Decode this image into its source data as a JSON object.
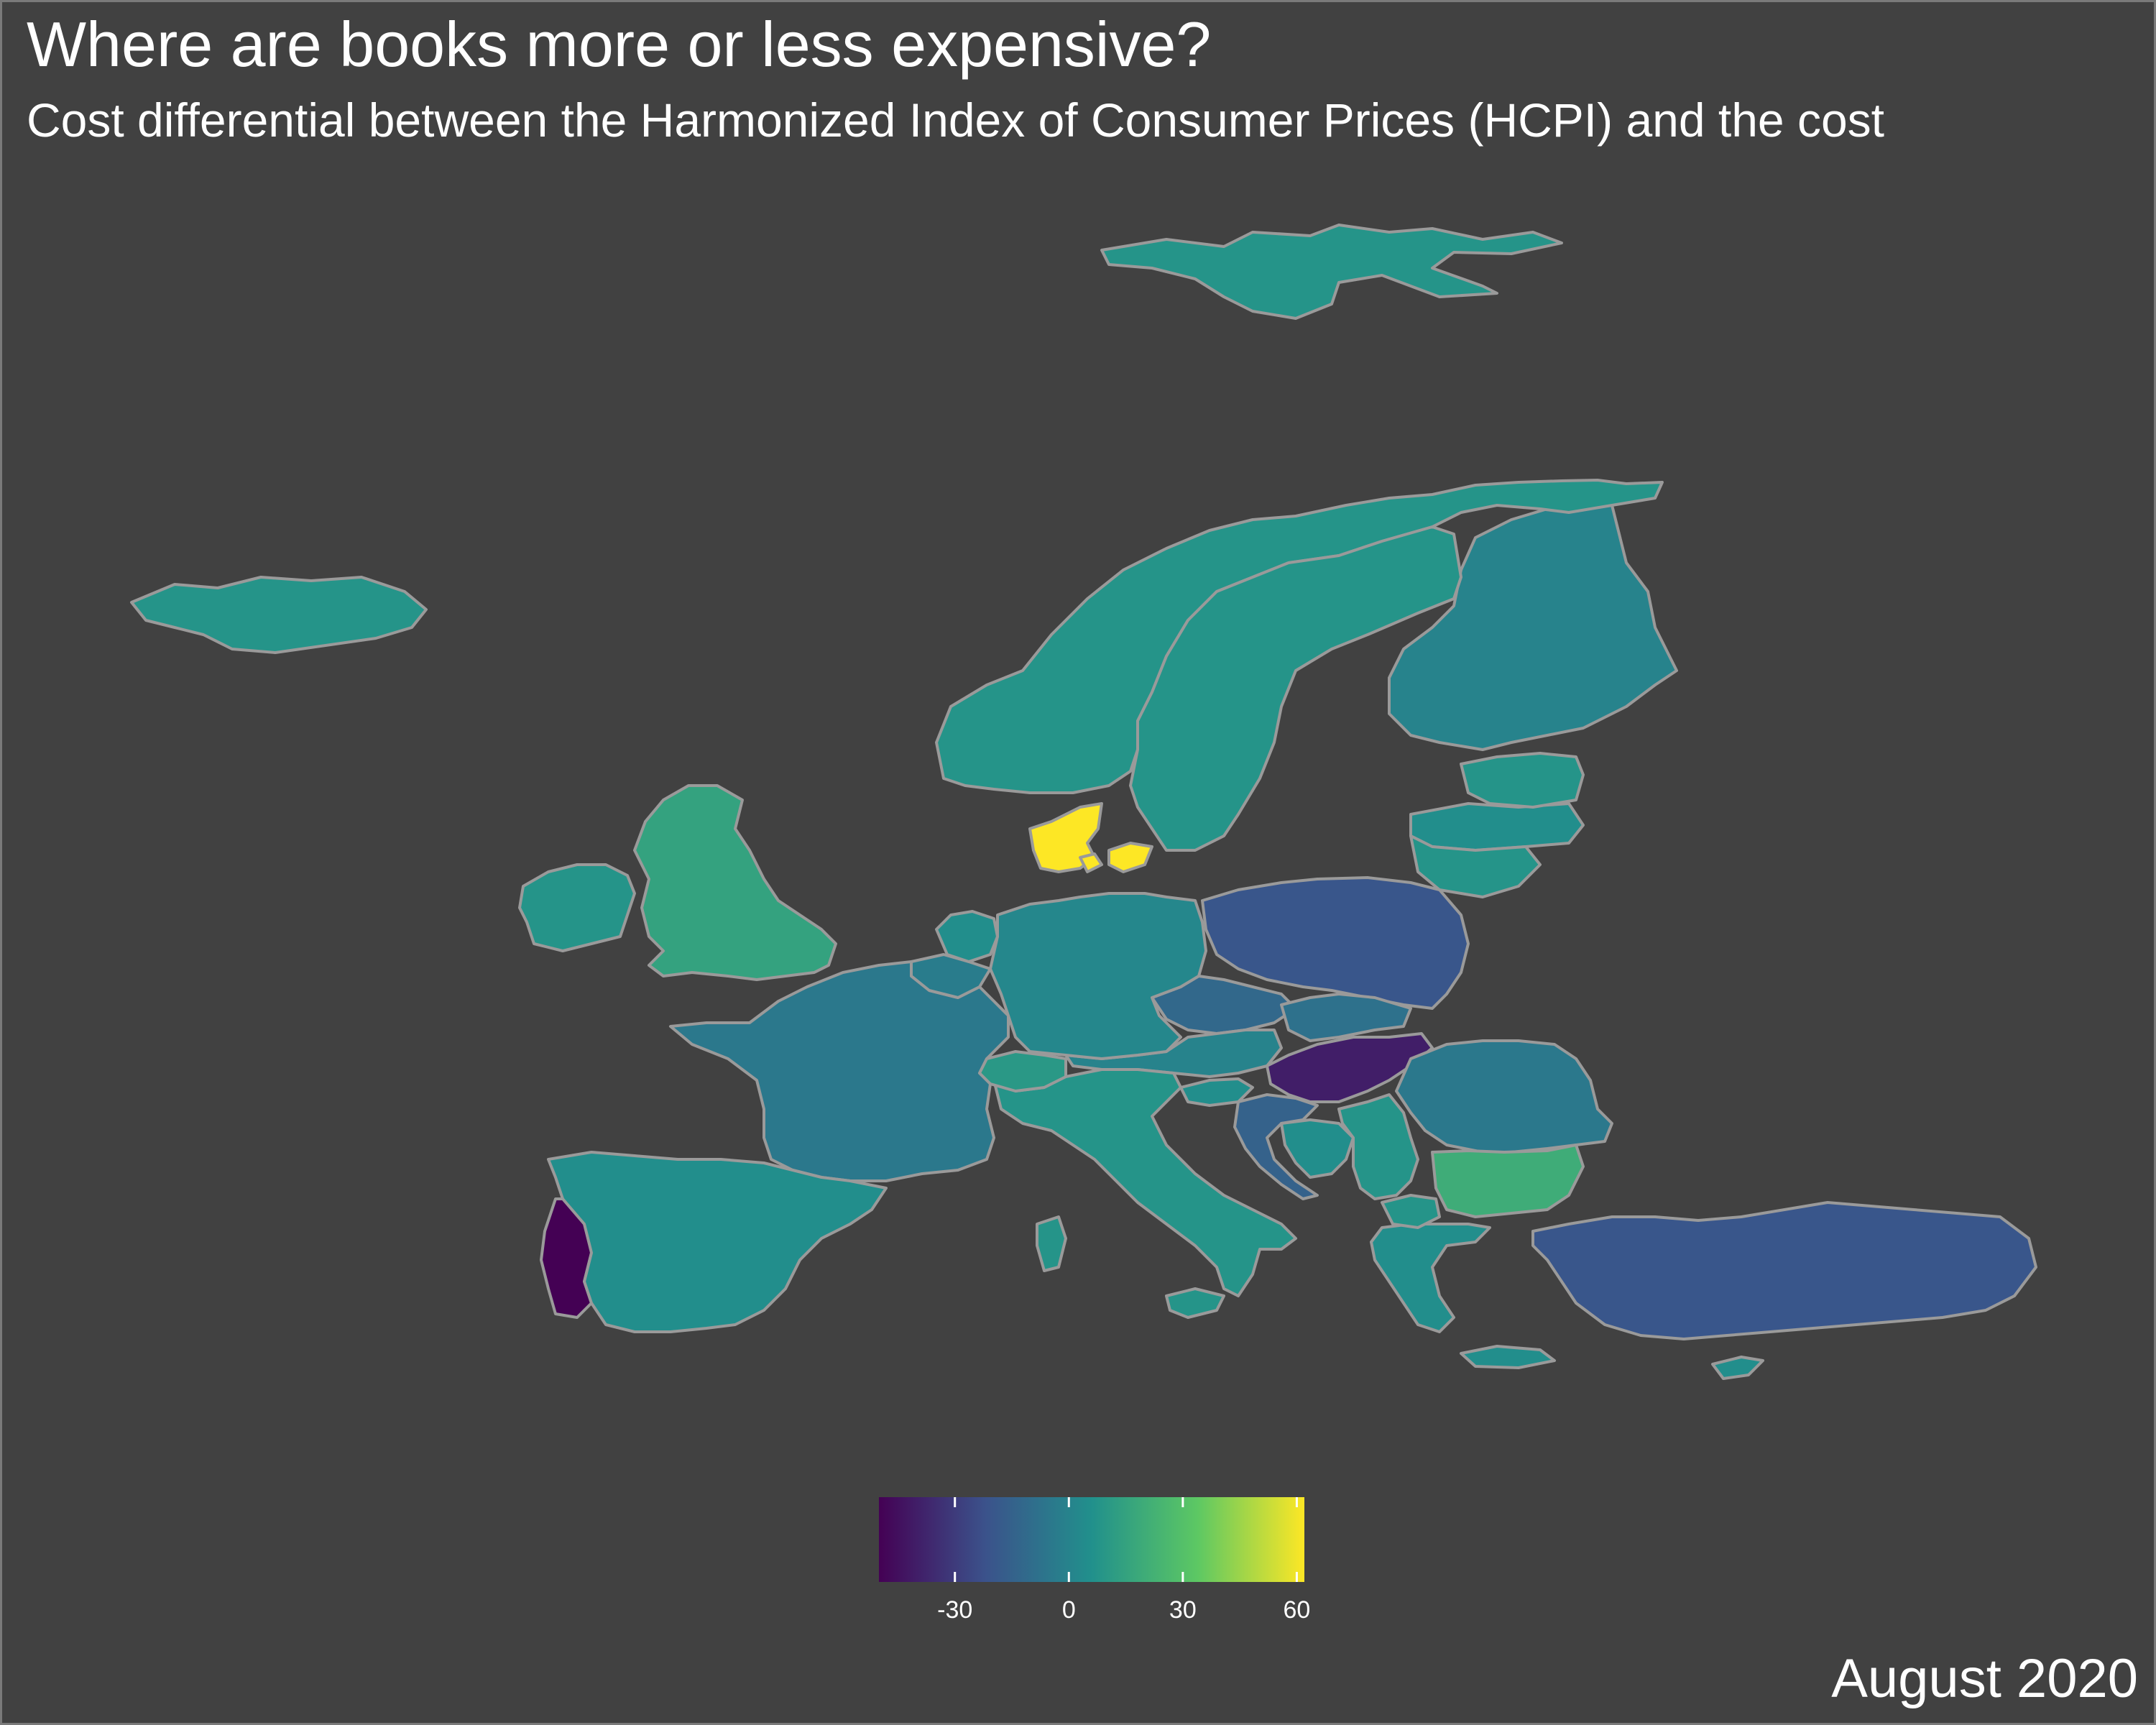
{
  "title": "Where are books more or less expensive?",
  "subtitle": "Cost differential between the Harmonized Index of Consumer Prices (HCPI) and the cost",
  "caption": "August 2020",
  "colors": {
    "background": "#414141",
    "border": "#9a9a9a",
    "scale": [
      "#440154",
      "#3b528b",
      "#21908c",
      "#5dc863",
      "#fde725"
    ]
  },
  "chart_data": {
    "type": "choropleth",
    "region": "Europe",
    "legend": {
      "placement": "bottom-center",
      "min": -50,
      "max": 62,
      "ticks": [
        -30,
        0,
        30,
        60
      ],
      "tick_labels": [
        "-30",
        "0",
        "30",
        "60"
      ]
    },
    "regions": [
      {
        "name": "Portugal",
        "value": -50
      },
      {
        "name": "Hungary",
        "value": -40
      },
      {
        "name": "Poland",
        "value": -20
      },
      {
        "name": "Turkey",
        "value": -20
      },
      {
        "name": "Czechia",
        "value": -12
      },
      {
        "name": "Croatia",
        "value": -15
      },
      {
        "name": "France",
        "value": -5
      },
      {
        "name": "Romania",
        "value": -5
      },
      {
        "name": "Belgium",
        "value": -3
      },
      {
        "name": "Finland",
        "value": 0
      },
      {
        "name": "Slovakia",
        "value": -8
      },
      {
        "name": "Austria",
        "value": 0
      },
      {
        "name": "Germany",
        "value": 2
      },
      {
        "name": "Latvia",
        "value": 5
      },
      {
        "name": "Netherlands",
        "value": 5
      },
      {
        "name": "Ireland",
        "value": 8
      },
      {
        "name": "Spain",
        "value": 5
      },
      {
        "name": "Italy",
        "value": 8
      },
      {
        "name": "Greece",
        "value": 5
      },
      {
        "name": "Norway",
        "value": 8
      },
      {
        "name": "Sweden",
        "value": 8
      },
      {
        "name": "Iceland",
        "value": 8
      },
      {
        "name": "Svalbard",
        "value": 8
      },
      {
        "name": "Estonia",
        "value": 8
      },
      {
        "name": "Lithuania",
        "value": 8
      },
      {
        "name": "Switzerland",
        "value": 10
      },
      {
        "name": "Slovenia",
        "value": 5
      },
      {
        "name": "Serbia",
        "value": 8
      },
      {
        "name": "Bosnia and Herzegovina",
        "value": 5
      },
      {
        "name": "North Macedonia",
        "value": 8
      },
      {
        "name": "Cyprus",
        "value": 5
      },
      {
        "name": "United Kingdom",
        "value": 15
      },
      {
        "name": "Bulgaria",
        "value": 20
      },
      {
        "name": "Denmark",
        "value": 62
      }
    ]
  }
}
